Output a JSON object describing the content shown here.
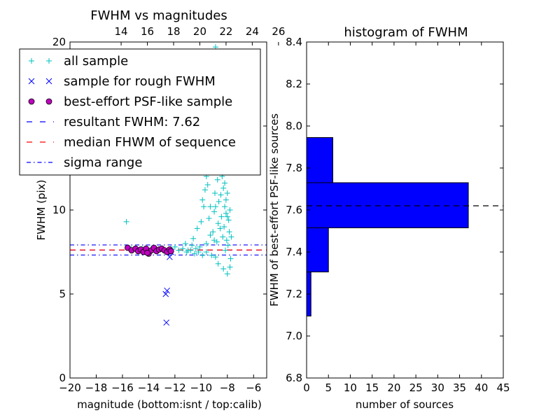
{
  "chart_data": [
    {
      "type": "scatter",
      "title": "FWHM vs magnitudes",
      "xlabel": "magnitude (bottom:isnt / top:calib)",
      "ylabel": "FWHM (pix)",
      "xlim": [
        -20,
        -5
      ],
      "ylim": [
        0,
        20
      ],
      "xticks": [
        -20,
        -18,
        -16,
        -14,
        -12,
        -10,
        -8,
        -6
      ],
      "xtick_labels": [
        "−20",
        "−18",
        "−16",
        "−14",
        "−12",
        "−10",
        "−8",
        "−6"
      ],
      "yticks": [
        0,
        5,
        10,
        15,
        20
      ],
      "ytick_labels": [
        "0",
        "5",
        "10",
        "15",
        "20"
      ],
      "top_axis": {
        "offset": 30.1,
        "ticks": [
          14,
          16,
          18,
          20,
          22,
          24,
          26
        ],
        "tick_labels": [
          "14",
          "16",
          "18",
          "20",
          "22",
          "24",
          "26"
        ]
      },
      "legend_position": "upper-left",
      "series": [
        {
          "name": "all sample",
          "marker": "+",
          "color": "#00bfbf",
          "points": [
            [
              -15.7,
              9.3
            ],
            [
              -15.3,
              7.7
            ],
            [
              -14.9,
              7.6
            ],
            [
              -14.5,
              7.7
            ],
            [
              -14.1,
              7.6
            ],
            [
              -13.8,
              7.7
            ],
            [
              -13.4,
              7.6
            ],
            [
              -13.0,
              7.7
            ],
            [
              -12.7,
              7.6
            ],
            [
              -12.3,
              7.7
            ],
            [
              -12.0,
              7.8
            ],
            [
              -11.7,
              7.6
            ],
            [
              -11.4,
              7.7
            ],
            [
              -11.1,
              7.5
            ],
            [
              -10.8,
              7.6
            ],
            [
              -10.5,
              7.4
            ],
            [
              -10.2,
              7.5
            ],
            [
              -9.9,
              7.3
            ],
            [
              -11.2,
              8.0
            ],
            [
              -10.6,
              8.3
            ],
            [
              -10.3,
              8.9
            ],
            [
              -10.0,
              9.3
            ],
            [
              -9.9,
              10.6
            ],
            [
              -9.8,
              10.2
            ],
            [
              -9.7,
              11.2
            ],
            [
              -9.6,
              12.0
            ],
            [
              -9.5,
              11.5
            ],
            [
              -9.4,
              9.5
            ],
            [
              -9.3,
              10.2
            ],
            [
              -9.2,
              12.9
            ],
            [
              -9.1,
              8.7
            ],
            [
              -9.0,
              9.9
            ],
            [
              -8.95,
              11.0
            ],
            [
              -8.9,
              10.2
            ],
            [
              -8.85,
              12.4
            ],
            [
              -8.8,
              8.1
            ],
            [
              -8.75,
              11.8
            ],
            [
              -8.7,
              9.2
            ],
            [
              -8.65,
              10.5
            ],
            [
              -8.6,
              13.2
            ],
            [
              -8.55,
              8.9
            ],
            [
              -8.5,
              10.9
            ],
            [
              -8.45,
              9.6
            ],
            [
              -8.4,
              12.0
            ],
            [
              -8.35,
              8.4
            ],
            [
              -8.3,
              11.3
            ],
            [
              -8.25,
              9.0
            ],
            [
              -8.2,
              10.2
            ],
            [
              -8.15,
              7.6
            ],
            [
              -8.1,
              9.8
            ],
            [
              -8.05,
              8.2
            ],
            [
              -8.0,
              11.0
            ],
            [
              -7.95,
              7.9
            ],
            [
              -7.9,
              9.4
            ],
            [
              -7.85,
              8.7
            ],
            [
              -7.8,
              10.0
            ],
            [
              -7.75,
              7.1
            ],
            [
              -7.7,
              8.4
            ],
            [
              -8.7,
              6.8
            ],
            [
              -8.3,
              6.5
            ],
            [
              -8.0,
              6.2
            ],
            [
              -7.8,
              6.6
            ],
            [
              -8.9,
              7.2
            ],
            [
              -9.2,
              7.3
            ],
            [
              -9.6,
              7.5
            ],
            [
              -8.5,
              15.5
            ],
            [
              -8.4,
              14.2
            ],
            [
              -8.3,
              16.1
            ],
            [
              -8.6,
              14.8
            ],
            [
              -8.8,
              17.0
            ],
            [
              -8.9,
              19.7
            ],
            [
              -8.5,
              19.2
            ],
            [
              -8.3,
              18.3
            ],
            [
              -8.65,
              15.9
            ],
            [
              -8.75,
              13.7
            ],
            [
              -8.55,
              12.6
            ],
            [
              -8.45,
              13.0
            ],
            [
              -8.35,
              12.2
            ],
            [
              -8.2,
              11.6
            ],
            [
              -8.1,
              10.6
            ],
            [
              -8.0,
              9.6
            ],
            [
              -9.0,
              8.2
            ],
            [
              -9.3,
              8.5
            ],
            [
              -9.6,
              8.0
            ],
            [
              -10.1,
              7.8
            ],
            [
              -10.4,
              7.7
            ],
            [
              -10.7,
              7.9
            ],
            [
              -11.0,
              7.6
            ]
          ]
        },
        {
          "name": "sample for rough FWHM",
          "marker": "x",
          "color": "#0000ff",
          "points": [
            [
              -12.6,
              5.2
            ],
            [
              -12.7,
              5.0
            ],
            [
              -12.65,
              3.3
            ],
            [
              -12.4,
              7.2
            ],
            [
              -12.3,
              7.5
            ]
          ]
        },
        {
          "name": "best-effort PSF-like sample",
          "marker": "o",
          "color": "#bf00bf",
          "points": [
            [
              -15.6,
              7.75
            ],
            [
              -15.3,
              7.6
            ],
            [
              -15.0,
              7.7
            ],
            [
              -14.8,
              7.55
            ],
            [
              -14.6,
              7.65
            ],
            [
              -14.4,
              7.5
            ],
            [
              -14.2,
              7.7
            ],
            [
              -14.0,
              7.4
            ],
            [
              -13.8,
              7.6
            ],
            [
              -13.6,
              7.75
            ],
            [
              -13.4,
              7.55
            ],
            [
              -13.2,
              7.65
            ],
            [
              -13.0,
              7.7
            ],
            [
              -12.8,
              7.6
            ],
            [
              -12.6,
              7.5
            ],
            [
              -12.4,
              7.65
            ],
            [
              -12.3,
              7.55
            ],
            [
              -14.1,
              7.45
            ]
          ]
        }
      ],
      "hlines": [
        {
          "name": "resultant FWHM: 7.62",
          "y": 7.62,
          "color": "#0000ff",
          "style": "dashed"
        },
        {
          "name": "median FHWM of sequence",
          "y": 7.62,
          "color": "#ff0000",
          "style": "dashed"
        },
        {
          "name": "sigma range",
          "y": 7.92,
          "color": "#0000ff",
          "style": "dashdot"
        },
        {
          "name": "",
          "y": 7.32,
          "color": "#0000ff",
          "style": "dashdot"
        }
      ]
    },
    {
      "type": "bar",
      "orientation": "horizontal",
      "title": "histogram of FWHM",
      "xlabel": "number of sources",
      "ylabel": "FWHM of best-effort PSF-like sources",
      "xlim": [
        0,
        45
      ],
      "ylim": [
        6.8,
        8.4
      ],
      "xticks": [
        0,
        5,
        10,
        15,
        20,
        25,
        30,
        35,
        40,
        45
      ],
      "xtick_labels": [
        "0",
        "5",
        "10",
        "15",
        "20",
        "25",
        "30",
        "35",
        "40",
        "45"
      ],
      "yticks": [
        6.8,
        7.0,
        7.2,
        7.4,
        7.6,
        7.8,
        8.0,
        8.2,
        8.4
      ],
      "ytick_labels": [
        "6.8",
        "7.0",
        "7.2",
        "7.4",
        "7.6",
        "7.8",
        "8.0",
        "8.2",
        "8.4"
      ],
      "bar_color": "#0000ff",
      "bins": [
        {
          "y0": 7.095,
          "y1": 7.305,
          "count": 1
        },
        {
          "y0": 7.305,
          "y1": 7.515,
          "count": 5
        },
        {
          "y0": 7.515,
          "y1": 7.73,
          "count": 37
        },
        {
          "y0": 7.73,
          "y1": 7.945,
          "count": 6
        }
      ],
      "hline": {
        "y": 7.62,
        "style": "dashed",
        "color": "#000000"
      }
    }
  ]
}
